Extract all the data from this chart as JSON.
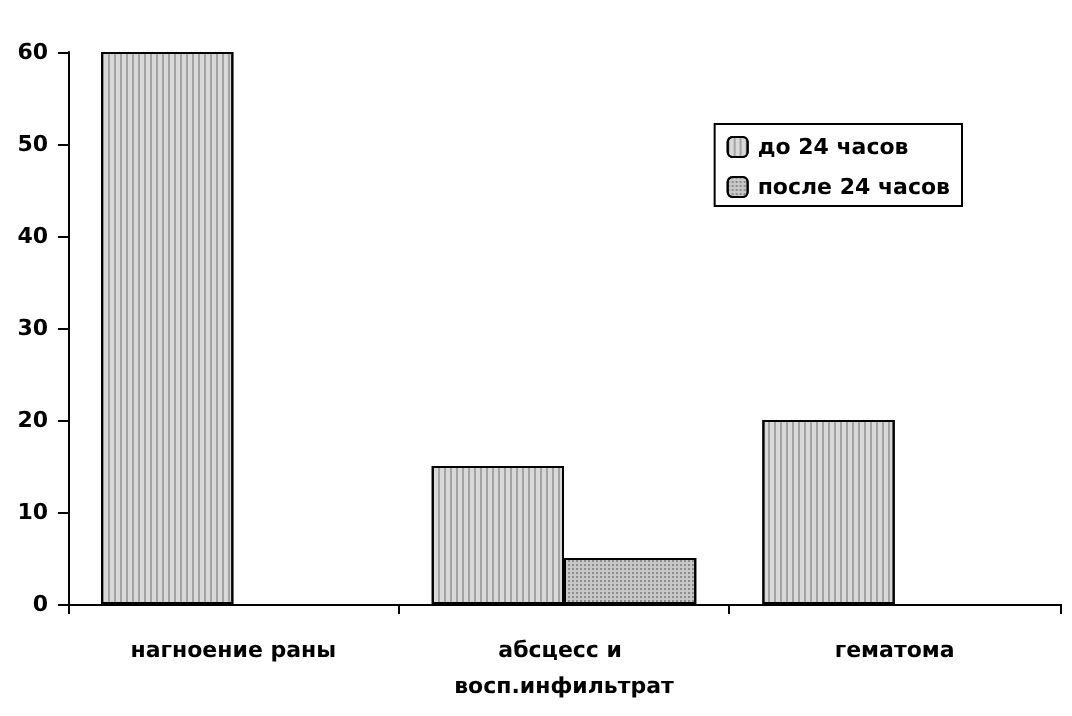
{
  "chart_data": {
    "type": "bar",
    "categories": [
      "нагноение раны",
      "абсцесс и восп.инфильтрат",
      "гематома"
    ],
    "series": [
      {
        "name": "до 24 часов",
        "color": "#d9d9d9",
        "values": [
          60,
          15,
          20
        ]
      },
      {
        "name": "после 24 часов",
        "color": "#c8c8c8",
        "values": [
          0,
          5,
          0
        ]
      }
    ],
    "ylim": [
      0,
      60
    ],
    "yticks": [
      0,
      10,
      20,
      30,
      40,
      50,
      60
    ],
    "grid": false,
    "legend": "top right"
  }
}
